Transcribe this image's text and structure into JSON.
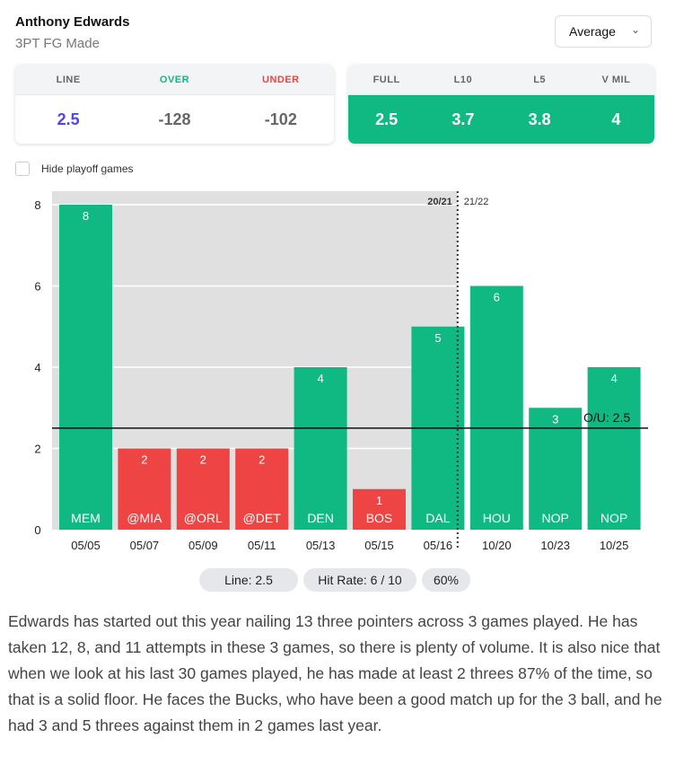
{
  "header": {
    "player": "Anthony Edwards",
    "stat": "3PT FG Made",
    "dropdown": "Average"
  },
  "odds": {
    "headers": [
      "LINE",
      "OVER",
      "UNDER"
    ],
    "values": [
      "2.5",
      "-128",
      "-102"
    ],
    "colors": [
      "#4f46e5",
      "#10b981",
      "#ef4444"
    ]
  },
  "averages": {
    "headers": [
      "FULL",
      "L10",
      "L5",
      "V MIL"
    ],
    "values": [
      "2.5",
      "3.7",
      "3.8",
      "4"
    ]
  },
  "filter": {
    "hide_playoff": "Hide playoff games",
    "checked": false
  },
  "chart_data": {
    "type": "bar",
    "categories": [
      "05/05",
      "05/07",
      "05/09",
      "05/11",
      "05/13",
      "05/15",
      "05/16",
      "10/20",
      "10/23",
      "10/25"
    ],
    "opponents": [
      "MEM",
      "@MIA",
      "@ORL",
      "@DET",
      "DEN",
      "BOS",
      "DAL",
      "HOU",
      "NOP",
      "NOP"
    ],
    "values": [
      8,
      2,
      2,
      2,
      4,
      1,
      5,
      6,
      3,
      4
    ],
    "ylim": [
      0,
      8
    ],
    "yticks": [
      0,
      2,
      4,
      6,
      8
    ],
    "line": 2.5,
    "line_label": "O/U: 2.5",
    "seasons": [
      "20/21",
      "21/22"
    ],
    "season_split_index": 7,
    "colors": {
      "over": "#10b981",
      "under": "#ef4444",
      "shade": "#e0e0e0"
    }
  },
  "summary": {
    "line": "Line: 2.5",
    "hit_rate": "Hit Rate: 6 / 10",
    "pct": "60%"
  },
  "description": "Edwards has started out this year nailing 13 three pointers across 3 games played. He has taken 12, 8, and 11 attempts in these 3 games, so there is plenty of volume. It is also nice that when we look at his last 30 games played, he has made at least 2 threes 87% of the time, so that is a solid floor. He faces the Bucks, who have been a good match up for the 3 ball, and he had 3 and 5 threes against them in 2 games last year."
}
